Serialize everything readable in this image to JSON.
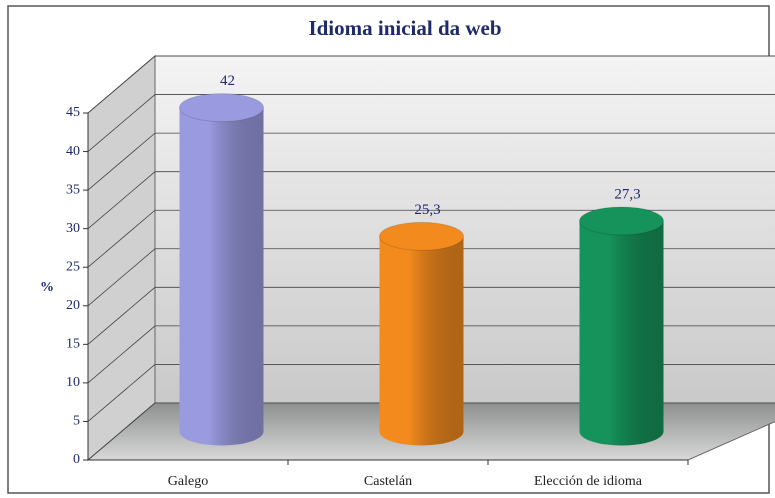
{
  "chart_data": {
    "type": "bar",
    "title": "Idioma inicial da web",
    "y_label": "%",
    "categories": [
      "Galego",
      "Castelán",
      "Elección de idioma"
    ],
    "values": [
      42,
      25.3,
      27.3
    ],
    "value_labels": [
      "42",
      "25,3",
      "27,3"
    ],
    "colors": [
      "#9a9ae0",
      "#f28a1e",
      "#16935a"
    ],
    "ylim": [
      0,
      45
    ],
    "yticks": [
      0,
      5,
      10,
      15,
      20,
      25,
      30,
      35,
      40,
      45
    ],
    "grid": true
  }
}
